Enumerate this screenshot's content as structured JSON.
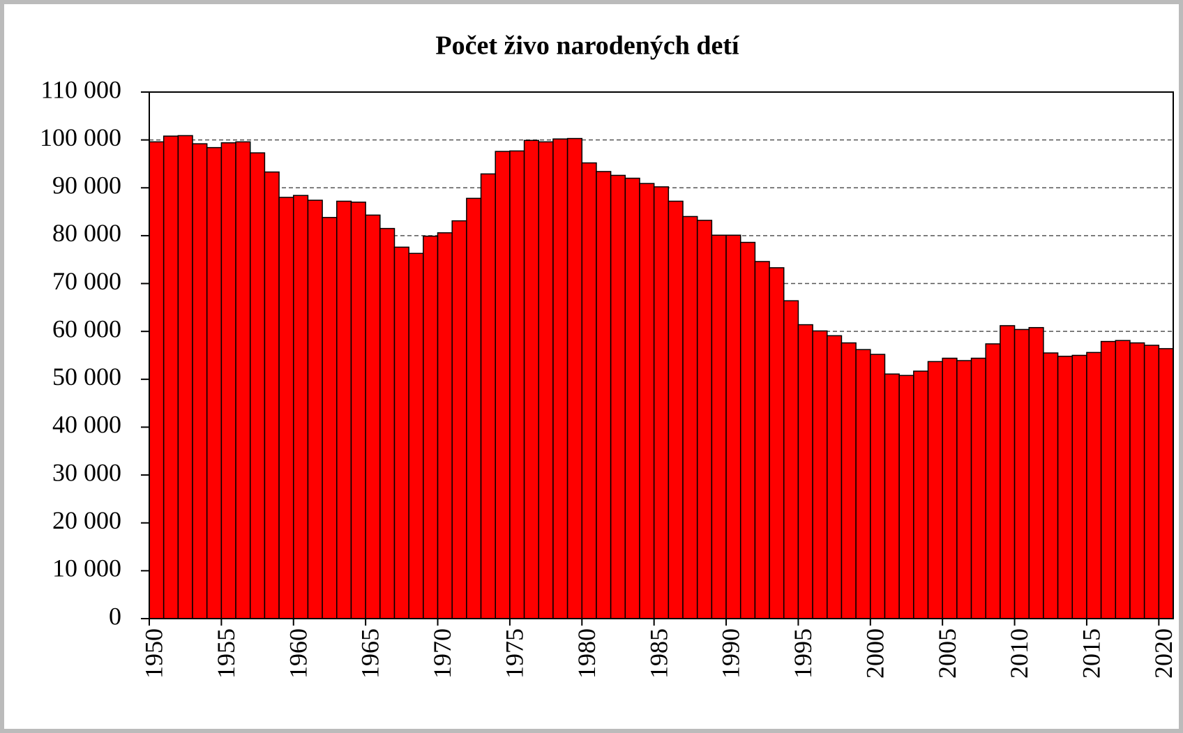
{
  "chart_data": {
    "type": "bar",
    "title": "Počet živo narodených detí",
    "categories": [
      "1950",
      null,
      null,
      null,
      null,
      "1955",
      null,
      null,
      null,
      null,
      "1960",
      null,
      null,
      null,
      null,
      "1965",
      null,
      null,
      null,
      null,
      "1970",
      null,
      null,
      null,
      null,
      "1975",
      null,
      null,
      null,
      null,
      "1980",
      null,
      null,
      null,
      null,
      "1985",
      null,
      null,
      null,
      null,
      "1990",
      null,
      null,
      null,
      null,
      "1995",
      null,
      null,
      null,
      null,
      "2000",
      null,
      null,
      null,
      null,
      "2005",
      null,
      null,
      null,
      null,
      "2010",
      null,
      null,
      null,
      null,
      "2015",
      null,
      null,
      null,
      null,
      "2020"
    ],
    "values": [
      99600,
      100800,
      100900,
      99200,
      98400,
      99400,
      99600,
      97300,
      93300,
      88000,
      88400,
      87400,
      83800,
      87200,
      87000,
      84300,
      81500,
      77600,
      76300,
      79900,
      80600,
      83100,
      87800,
      92900,
      97600,
      97700,
      99900,
      99600,
      100200,
      100300,
      95200,
      93400,
      92600,
      92000,
      90900,
      90200,
      87200,
      84000,
      83200,
      80100,
      80100,
      78600,
      74600,
      73300,
      66400,
      61400,
      60100,
      59100,
      57600,
      56200,
      55200,
      51100,
      50800,
      51700,
      53700,
      54400,
      53900,
      54400,
      57400,
      61200,
      60400,
      60800,
      55500,
      54800,
      55000,
      55600,
      57900,
      58100,
      57600,
      57100,
      56400
    ],
    "color": "#ff0000",
    "ylim": [
      0,
      110000
    ],
    "yticks": [
      0,
      {
        "value": 10000,
        "label": "10 000"
      },
      {
        "value": 20000,
        "label": "20 000"
      },
      {
        "value": 30000,
        "label": "30 000"
      },
      {
        "value": 40000,
        "label": "40 000"
      },
      {
        "value": 50000,
        "label": "50 000"
      },
      {
        "value": 60000,
        "label": "60 000"
      },
      {
        "value": 70000,
        "label": "70 000"
      },
      {
        "value": 80000,
        "label": "80 000"
      },
      {
        "value": 90000,
        "label": "90 000"
      },
      {
        "value": 100000,
        "label": "100 000"
      },
      {
        "value": 110000,
        "label": "110 000"
      }
    ],
    "grid": true
  }
}
